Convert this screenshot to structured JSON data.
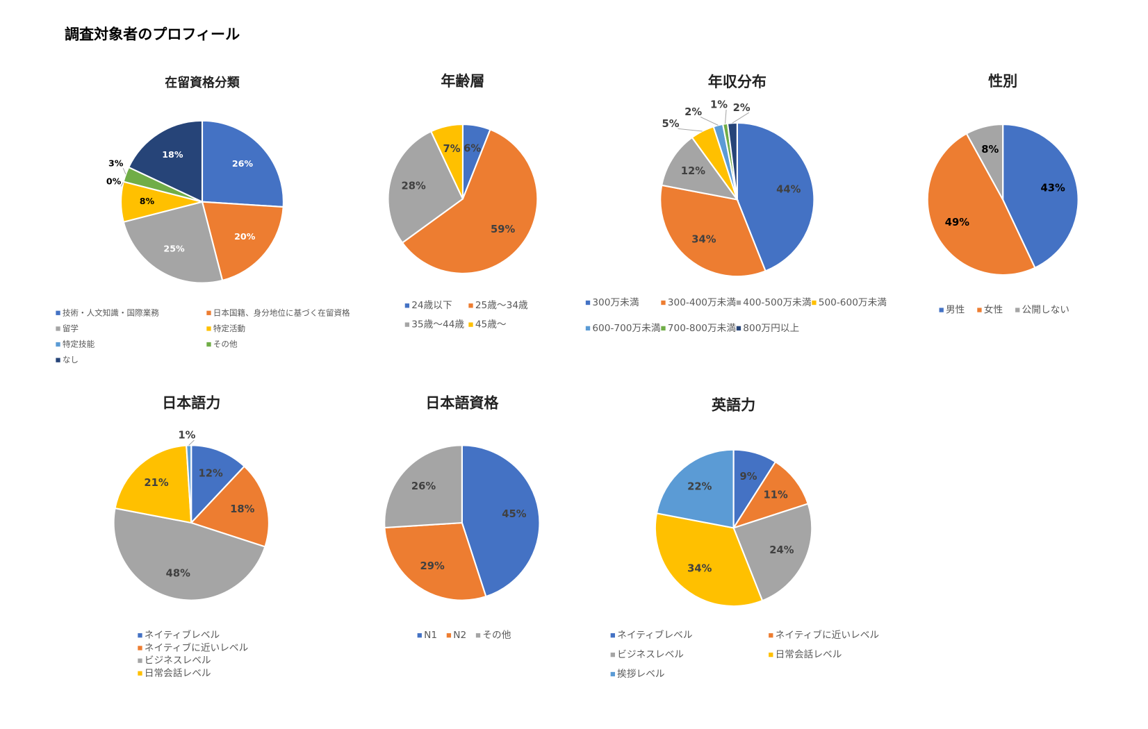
{
  "title": "調査対象者のプロフィール",
  "chart_data": [
    {
      "type": "pie",
      "title": "在留資格分類",
      "categories": [
        "技術・人文知識・国際業務",
        "日本国籍、身分地位に基づく在留資格",
        "留学",
        "特定活動",
        "特定技能",
        "その他",
        "なし"
      ],
      "values": [
        26,
        20,
        25,
        8,
        0,
        3,
        18
      ],
      "value_labels": [
        "26%",
        "20%",
        "25%",
        "8%",
        "0%",
        "3%",
        "18%"
      ],
      "colors": [
        "#4472c4",
        "#ed7d31",
        "#a5a5a5",
        "#ffc000",
        "#5b9bd5",
        "#70ad47",
        "#264478"
      ]
    },
    {
      "type": "pie",
      "title": "年齢層",
      "categories": [
        "24歳以下",
        "25歳～34歳",
        "35歳～44歳",
        "45歳～"
      ],
      "values": [
        6,
        59,
        28,
        7
      ],
      "value_labels": [
        "6%",
        "59%",
        "28%",
        "7%"
      ],
      "colors": [
        "#4472c4",
        "#ed7d31",
        "#a5a5a5",
        "#ffc000"
      ]
    },
    {
      "type": "pie",
      "title": "年収分布",
      "categories": [
        "300万未満",
        "300-400万未満",
        "400-500万未満",
        "500-600万未満",
        "600-700万未満",
        "700-800万未満",
        "800万円以上"
      ],
      "values": [
        44,
        34,
        12,
        5,
        2,
        1,
        2
      ],
      "value_labels": [
        "44%",
        "34%",
        "12%",
        "5%",
        "2%",
        "1%",
        "2%"
      ],
      "colors": [
        "#4472c4",
        "#ed7d31",
        "#a5a5a5",
        "#ffc000",
        "#5b9bd5",
        "#70ad47",
        "#264478"
      ]
    },
    {
      "type": "pie",
      "title": "性別",
      "categories": [
        "男性",
        "女性",
        "公開しない"
      ],
      "values": [
        43,
        49,
        8
      ],
      "value_labels": [
        "43%",
        "49%",
        "8%"
      ],
      "colors": [
        "#4472c4",
        "#ed7d31",
        "#a5a5a5"
      ]
    },
    {
      "type": "pie",
      "title": "日本語力",
      "categories": [
        "ネイティブレベル",
        "ネイティブに近いレベル",
        "ビジネスレベル",
        "日常会話レベル",
        null
      ],
      "values": [
        12,
        18,
        48,
        21,
        1
      ],
      "value_labels": [
        "12%",
        "18%",
        "48%",
        "21%",
        "1%"
      ],
      "colors": [
        "#4472c4",
        "#ed7d31",
        "#a5a5a5",
        "#ffc000",
        "#5b9bd5"
      ]
    },
    {
      "type": "pie",
      "title": "日本語資格",
      "categories": [
        "N1",
        "N2",
        "その他"
      ],
      "values": [
        45,
        29,
        26
      ],
      "value_labels": [
        "45%",
        "29%",
        "26%"
      ],
      "colors": [
        "#4472c4",
        "#ed7d31",
        "#a5a5a5"
      ]
    },
    {
      "type": "pie",
      "title": "英語力",
      "categories": [
        "ネイティブレベル",
        "ネイティブに近いレベル",
        "ビジネスレベル",
        "日常会話レベル",
        "挨拶レベル"
      ],
      "values": [
        9,
        11,
        24,
        34,
        22
      ],
      "value_labels": [
        "9%",
        "11%",
        "24%",
        "34%",
        "22%"
      ],
      "colors": [
        "#4472c4",
        "#ed7d31",
        "#a5a5a5",
        "#ffc000",
        "#5b9bd5"
      ]
    }
  ]
}
